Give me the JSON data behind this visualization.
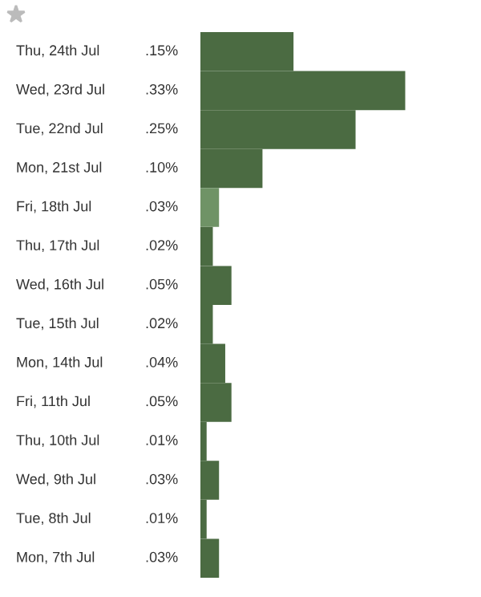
{
  "chart_data": {
    "type": "bar",
    "orientation": "horizontal",
    "categories": [
      "Thu, 24th Jul",
      "Wed, 23rd Jul",
      "Tue, 22nd Jul",
      "Mon, 21st Jul",
      "Fri, 18th Jul",
      "Thu, 17th Jul",
      "Wed, 16th Jul",
      "Tue, 15th Jul",
      "Mon, 14th Jul",
      "Fri, 11th Jul",
      "Thu, 10th Jul",
      "Wed, 9th Jul",
      "Tue, 8th Jul",
      "Mon, 7th Jul"
    ],
    "values": [
      0.15,
      0.33,
      0.25,
      0.1,
      0.03,
      0.02,
      0.05,
      0.02,
      0.04,
      0.05,
      0.01,
      0.03,
      0.01,
      0.03
    ],
    "value_labels": [
      ".15%",
      ".33%",
      ".25%",
      ".10%",
      ".03%",
      ".02%",
      ".05%",
      ".02%",
      ".04%",
      ".05%",
      ".01%",
      ".03%",
      ".01%",
      ".03%"
    ],
    "colors": [
      "#4b6b42",
      "#4b6b42",
      "#4b6b42",
      "#4b6b42",
      "#6f9366",
      "#4b6b42",
      "#4b6b42",
      "#4b6b42",
      "#4b6b42",
      "#4b6b42",
      "#4b6b42",
      "#4b6b42",
      "#4b6b42",
      "#4b6b42"
    ]
  }
}
